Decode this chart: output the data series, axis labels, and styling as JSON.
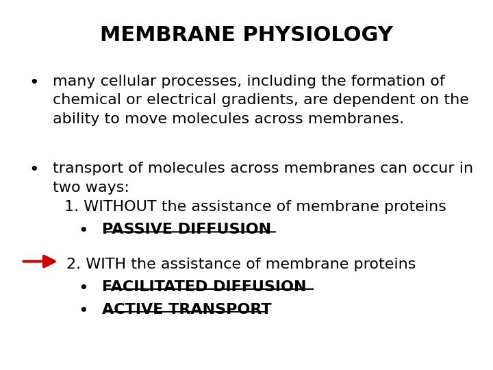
{
  "title": "MEMBRANE PHYSIOLOGY",
  "title_fontsize": 22,
  "title_fontweight": "bold",
  "background_color": "#ffffff",
  "text_color": "#000000",
  "bullet1": "many cellular processes, including the formation of\nchemical or electrical gradients, are dependent on the\nability to move molecules across membranes.",
  "bullet2_line1": "transport of molecules across membranes can occur in\ntwo ways:",
  "item1": "1. WITHOUT the assistance of membrane proteins",
  "sub_item1": "PASSIVE DIFFUSION",
  "item2": "2. WITH the assistance of membrane proteins",
  "sub_item2a": "FACILITATED DIFFUSION",
  "sub_item2b": "ACTIVE TRANSPORT",
  "body_fontsize": 16,
  "arrow_color": "#cc0000"
}
